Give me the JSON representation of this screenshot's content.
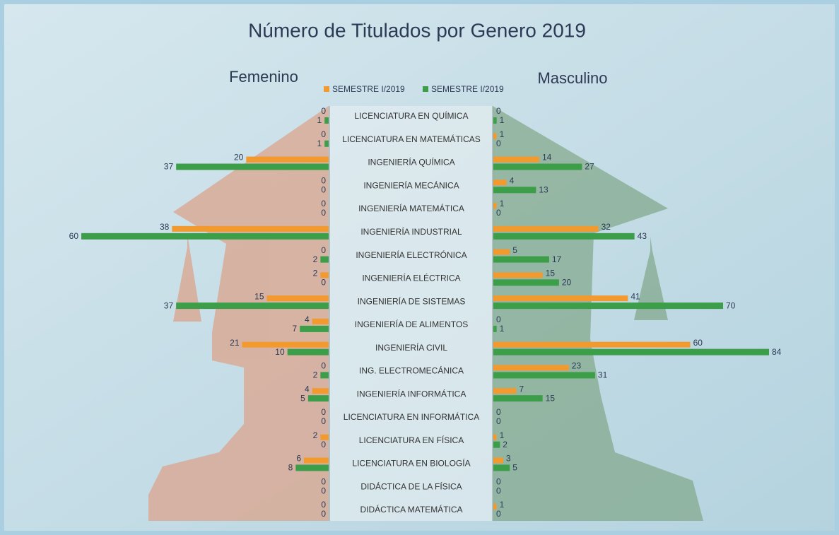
{
  "chart_data": {
    "type": "butterfly-bar",
    "title": "Número de Titulados por Genero 2019",
    "categories": [
      "LICENCIATURA EN QUÍMICA",
      "LICENCIATURA EN MATEMÁTICAS",
      "INGENIERÍA QUÍMICA",
      "INGENIERÍA MECÁNICA",
      "INGENIERÍA MATEMÁTICA",
      "INGENIERÍA INDUSTRIAL",
      "INGENIERÍA ELECTRÓNICA",
      "INGENIERÍA ELÉCTRICA",
      "INGENIERÍA DE SISTEMAS",
      "INGENIERÍA DE ALIMENTOS",
      "INGENIERÍA CIVIL",
      "ING. ELECTROMECÁNICA",
      "INGENIERÍA INFORMÁTICA",
      "LICENCIATURA EN INFORMÁTICA",
      "LICENCIATURA EN FÍSICA",
      "LICENCIATURA EN BIOLOGÍA",
      "DIDÁCTICA DE LA FÍSICA",
      "DIDÁCTICA MATEMÁTICA"
    ],
    "panels": [
      {
        "title": "Femenino",
        "xlim": [
          0,
          60
        ],
        "series": [
          {
            "name": "SEMESTRE I/2019",
            "color": "#f39a2e",
            "values": [
              0,
              0,
              20,
              0,
              0,
              38,
              0,
              2,
              15,
              4,
              21,
              0,
              4,
              0,
              2,
              6,
              0,
              0
            ]
          },
          {
            "name": "SEMESTRE I/2019",
            "color": "#3c9e48",
            "values": [
              1,
              1,
              37,
              0,
              0,
              60,
              2,
              0,
              37,
              7,
              10,
              2,
              5,
              0,
              0,
              8,
              0,
              0
            ]
          }
        ]
      },
      {
        "title": "Masculino",
        "xlim": [
          0,
          84
        ],
        "series": [
          {
            "color": "#f39a2e",
            "values": [
              0,
              1,
              14,
              4,
              1,
              32,
              5,
              15,
              41,
              0,
              60,
              23,
              7,
              0,
              1,
              3,
              0,
              1
            ]
          },
          {
            "color": "#3c9e48",
            "values": [
              1,
              0,
              27,
              13,
              0,
              43,
              17,
              20,
              70,
              1,
              84,
              31,
              15,
              0,
              2,
              5,
              0,
              0
            ]
          }
        ]
      }
    ]
  }
}
